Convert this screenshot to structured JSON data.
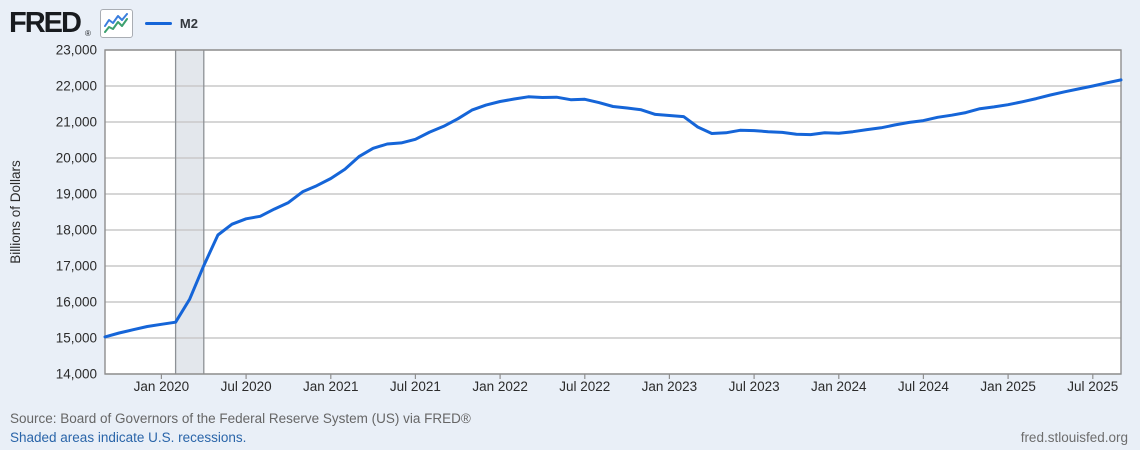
{
  "header": {
    "logo_text": "FRED",
    "logo_mark": "®",
    "legend": {
      "label": "M2"
    }
  },
  "footer": {
    "source": "Source: Board of Governors of the Federal Reserve System (US) via FRED®",
    "recession_note": "Shaded areas indicate U.S. recessions.",
    "site": "fred.stlouisfed.org"
  },
  "colors": {
    "line": "#1565d8",
    "page_bg": "#e9eff7",
    "plot_bg": "#ffffff",
    "grid": "#c9c9c9",
    "border": "#8e8e8e",
    "recession_fill": "#e3e7ec",
    "recession_edge": "#8d9196",
    "axis_text": "#2b2b2b",
    "source_text": "#666666",
    "link": "#2a65a9",
    "site_text": "#6d6d6d",
    "icon_green": "#3da06f",
    "icon_blue": "#3b7edd"
  },
  "chart_data": {
    "type": "line",
    "title": "M2",
    "ylabel": "Billions of Dollars",
    "xlabel": "",
    "ylim": [
      14000,
      23000
    ],
    "y_ticks": [
      14000,
      15000,
      16000,
      17000,
      18000,
      19000,
      20000,
      21000,
      22000,
      23000
    ],
    "x_start": "2019-09",
    "x_end": "2025-09",
    "frequency": "monthly",
    "grid": "horizontal",
    "legend_position": "top-left",
    "x_tick_labels": [
      "Jan 2020",
      "Jul 2020",
      "Jan 2021",
      "Jul 2021",
      "Jan 2022",
      "Jul 2022",
      "Jan 2023",
      "Jul 2023",
      "Jan 2024",
      "Jul 2024",
      "Jan 2025",
      "Jul 2025"
    ],
    "x_tick_month_indices": [
      4,
      10,
      16,
      22,
      28,
      34,
      40,
      46,
      52,
      58,
      64,
      70
    ],
    "recession_band": {
      "start_month_index": 5,
      "end_month_index": 7
    },
    "series": [
      {
        "name": "M2",
        "values": [
          15030,
          15140,
          15230,
          15320,
          15380,
          15440,
          16080,
          17010,
          17860,
          18160,
          18310,
          18380,
          18580,
          18760,
          19060,
          19230,
          19430,
          19690,
          20040,
          20270,
          20390,
          20420,
          20520,
          20720,
          20880,
          21090,
          21330,
          21470,
          21570,
          21640,
          21700,
          21680,
          21690,
          21620,
          21630,
          21540,
          21430,
          21390,
          21340,
          21210,
          21180,
          21150,
          20860,
          20680,
          20700,
          20770,
          20760,
          20730,
          20710,
          20660,
          20650,
          20700,
          20690,
          20730,
          20790,
          20840,
          20920,
          20990,
          21040,
          21130,
          21190,
          21260,
          21370,
          21420,
          21480,
          21560,
          21650,
          21750,
          21840,
          21920,
          22000,
          22090,
          22170
        ]
      }
    ]
  }
}
